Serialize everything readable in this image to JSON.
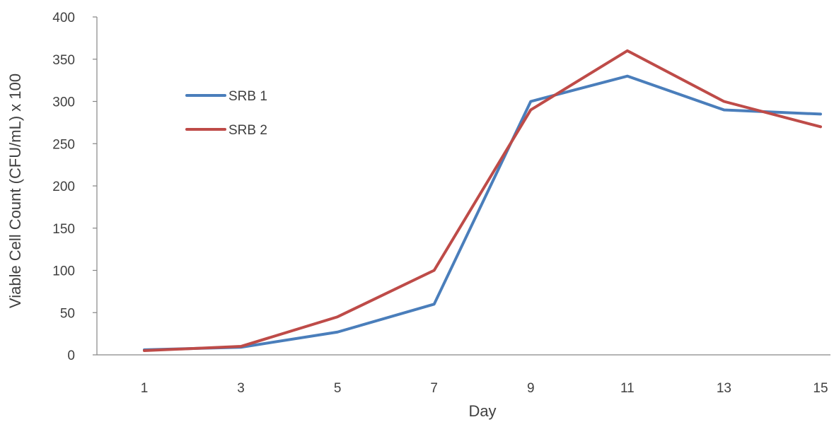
{
  "chart_data": {
    "type": "line",
    "title": "",
    "xlabel": "Day",
    "ylabel": "Viable Cell Count (CFU/mL) x 100",
    "x": [
      1,
      3,
      5,
      7,
      9,
      11,
      13,
      15
    ],
    "x_ticks": [
      "1",
      "3",
      "5",
      "7",
      "9",
      "11",
      "13",
      "15"
    ],
    "ylim": [
      0,
      400
    ],
    "y_ticks": [
      "0",
      "50",
      "100",
      "150",
      "200",
      "250",
      "300",
      "350",
      "400"
    ],
    "grid": false,
    "legend_position": "top-left",
    "series": [
      {
        "name": "SRB 1",
        "color": "#4a7ebb",
        "values": [
          6,
          9,
          27,
          60,
          300,
          330,
          290,
          285
        ]
      },
      {
        "name": "SRB 2",
        "color": "#be4b48",
        "values": [
          5,
          10,
          45,
          100,
          290,
          360,
          300,
          270
        ]
      }
    ]
  }
}
